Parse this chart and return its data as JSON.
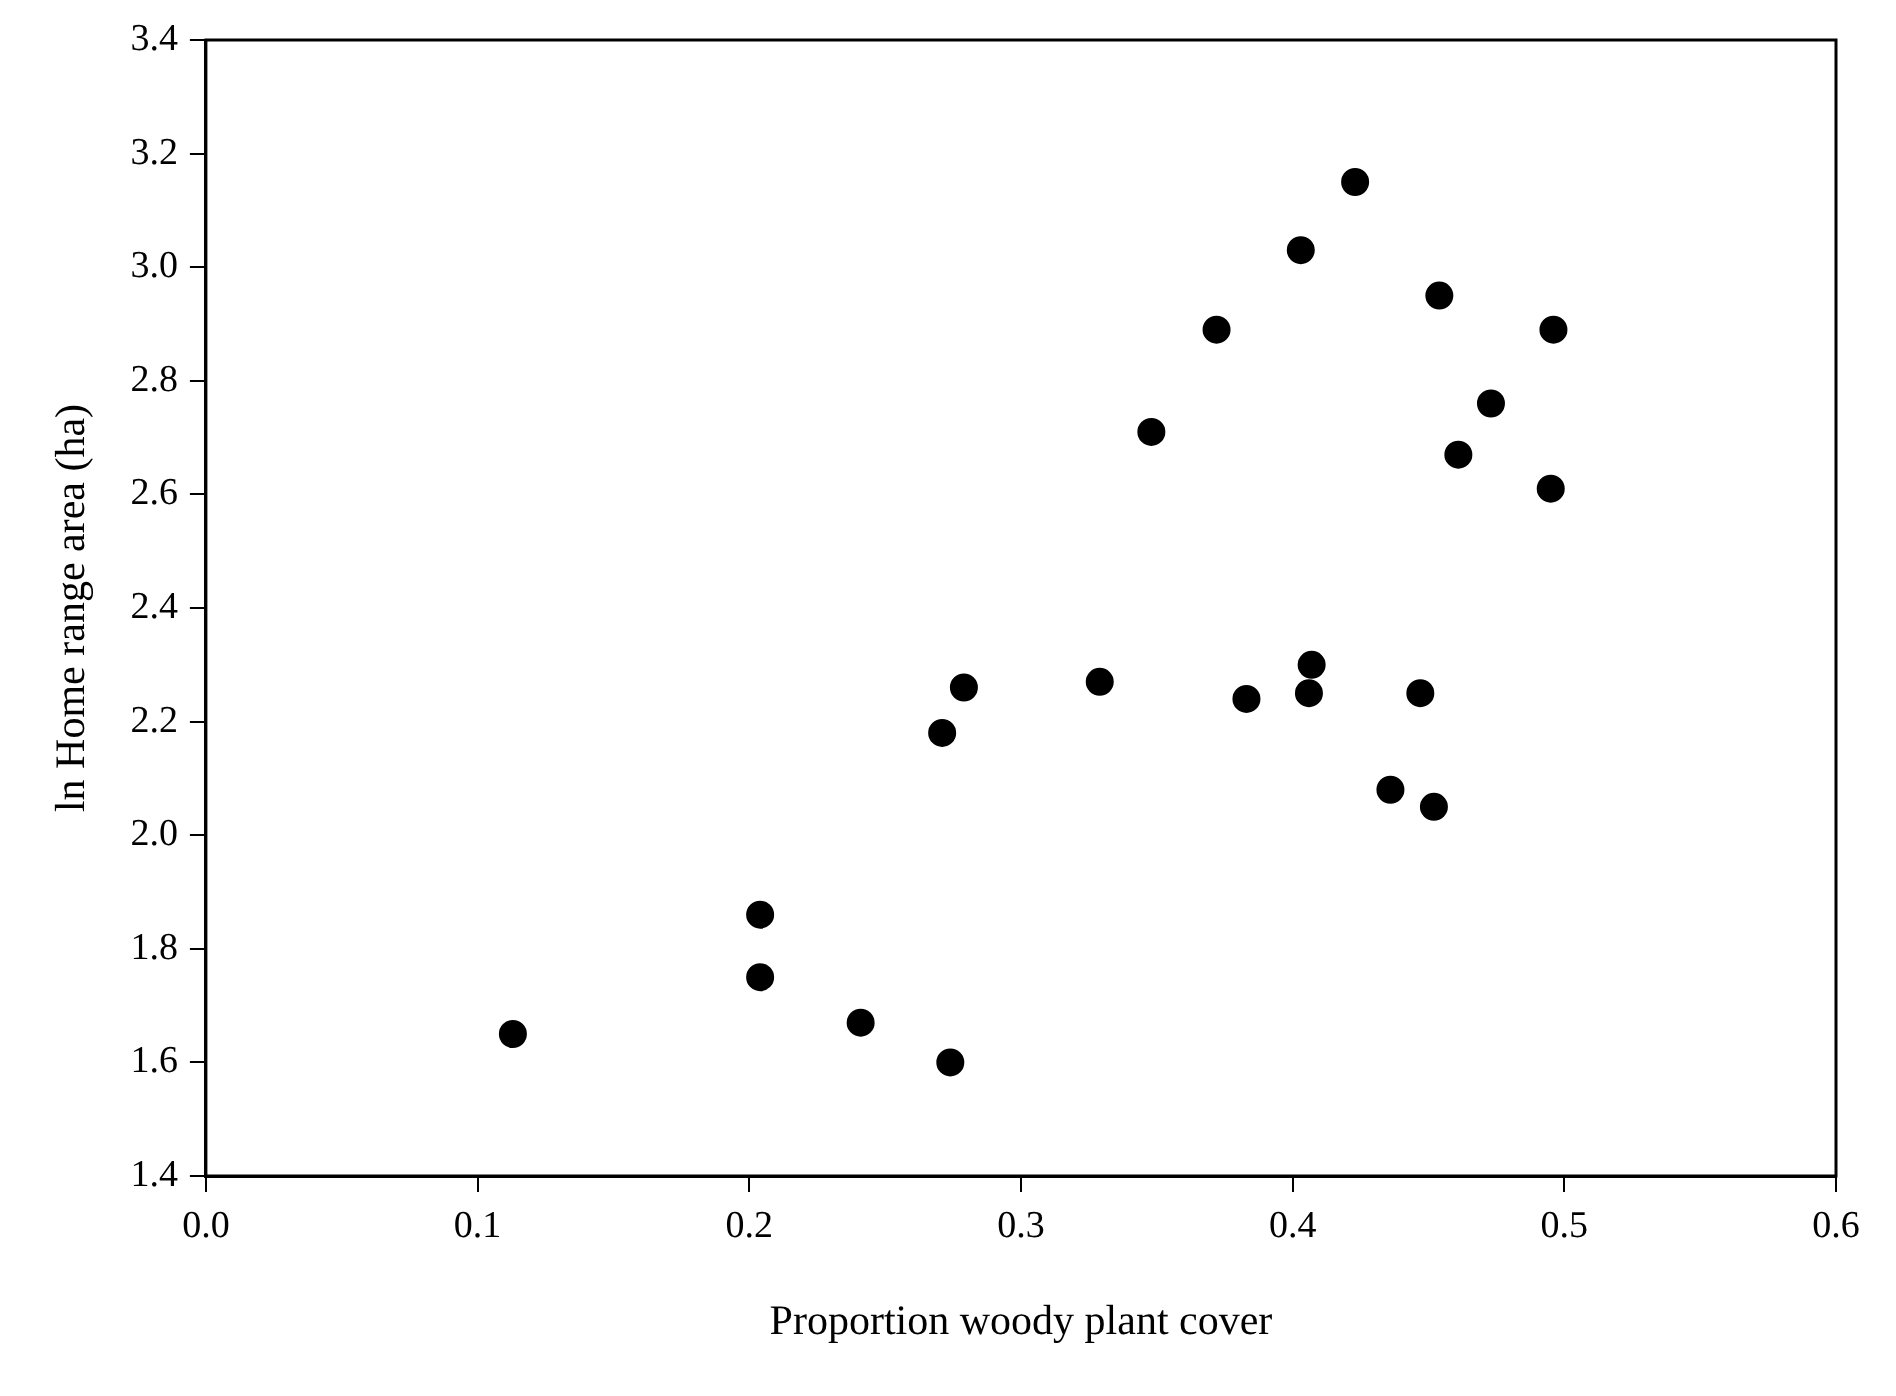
{
  "chart_data": {
    "type": "scatter",
    "xlabel": "Proportion woody plant cover",
    "ylabel": "ln Home range area (ha)",
    "x": [
      0.113,
      0.204,
      0.204,
      0.241,
      0.274,
      0.271,
      0.279,
      0.329,
      0.348,
      0.372,
      0.383,
      0.403,
      0.407,
      0.406,
      0.423,
      0.436,
      0.447,
      0.452,
      0.454,
      0.461,
      0.473,
      0.496,
      0.495
    ],
    "series": [
      {
        "color": "#000000",
        "values": [
          1.65,
          1.86,
          1.75,
          1.67,
          1.6,
          2.18,
          2.26,
          2.27,
          2.71,
          2.89,
          2.24,
          3.03,
          2.3,
          2.25,
          3.15,
          2.08,
          2.25,
          2.05,
          2.95,
          2.67,
          2.76,
          2.89,
          2.61
        ]
      }
    ],
    "xlim": [
      0,
      0.6
    ],
    "xticks": [
      {
        "value": 0,
        "label": "0.0"
      },
      0.1,
      0.2,
      0.3,
      0.4,
      0.5,
      0.6
    ],
    "ylim": [
      1.4,
      3.4
    ],
    "yticks": [
      1.4,
      1.6,
      1.8,
      {
        "value": 2,
        "label": "2.0"
      },
      2.2,
      2.4,
      2.6,
      2.8,
      {
        "value": 3,
        "label": "3.0"
      },
      3.2,
      3.4
    ],
    "grid": false,
    "legend": false,
    "marker": "circle"
  }
}
